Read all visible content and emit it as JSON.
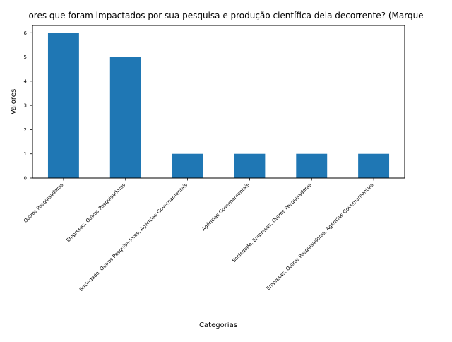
{
  "chart_data": {
    "type": "bar",
    "title": "ores que foram impactados por sua pesquisa e produção científica dela decorrente? (Marque",
    "xlabel": "Categorias",
    "ylabel": "Valores",
    "categories": [
      "Outros Pesquisadores",
      "Empresas, Outros Pesquisadores",
      "Sociedade, Outros Pesquisadores, Agências Governamentais",
      "Agências Governamentais",
      "Sociedade, Empresas, Outros Pesquisadores",
      "Empresas, Outros Pesquisadores, Agências Governamentais"
    ],
    "values": [
      6,
      5,
      1,
      1,
      1,
      1
    ],
    "ylim": [
      0,
      6.3
    ],
    "yticks": [
      0,
      1,
      2,
      3,
      4,
      5,
      6
    ],
    "grid": false,
    "legend": "none",
    "bar_color": "#1f77b4"
  }
}
